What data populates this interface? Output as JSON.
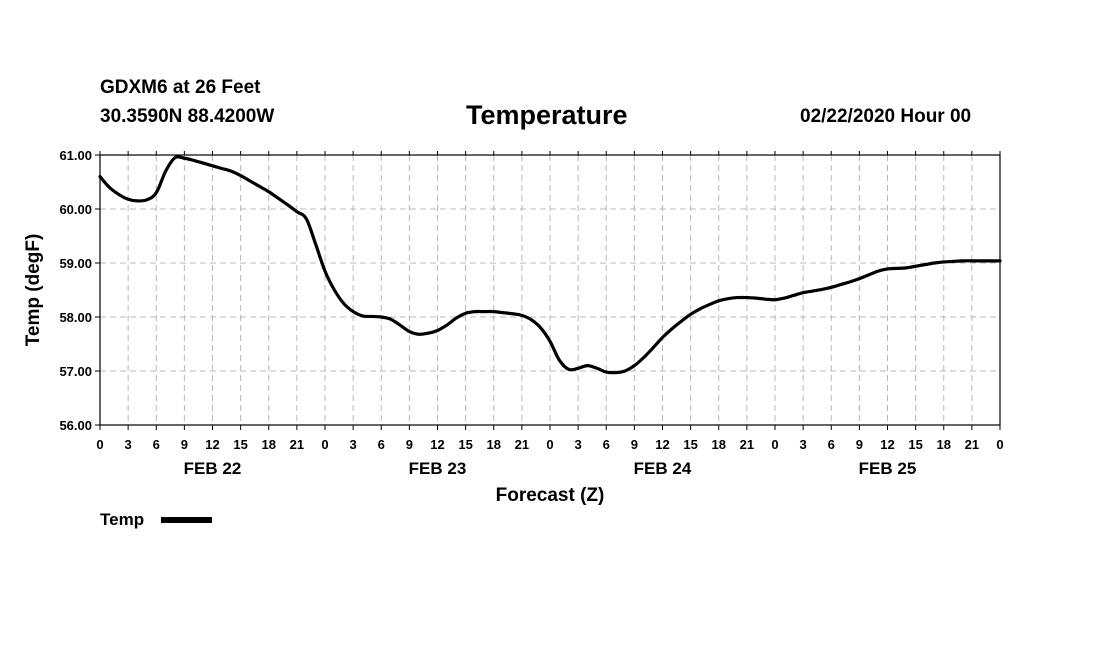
{
  "header": {
    "station": "GDXM6 at 26 Feet",
    "coordinates": "30.3590N 88.4200W",
    "title": "Temperature",
    "run_time": "02/22/2020 Hour 00"
  },
  "chart_data": {
    "type": "line",
    "title": "Temperature",
    "xlabel": "Forecast (Z)",
    "ylabel": "Temp (degF)",
    "x_unit": "forecast hour",
    "xlim": [
      0,
      96
    ],
    "ylim": [
      56,
      61
    ],
    "y_ticks": [
      "56.00",
      "57.00",
      "58.00",
      "59.00",
      "60.00",
      "61.00"
    ],
    "x_tick_labels": [
      "0",
      "3",
      "6",
      "9",
      "12",
      "15",
      "18",
      "21",
      "0",
      "3",
      "6",
      "9",
      "12",
      "15",
      "18",
      "21",
      "0",
      "3",
      "6",
      "9",
      "12",
      "15",
      "18",
      "21",
      "0",
      "3",
      "6",
      "9",
      "12",
      "15",
      "18",
      "21",
      "0"
    ],
    "day_labels": [
      {
        "label": "FEB 22",
        "hour": 12
      },
      {
        "label": "FEB 23",
        "hour": 36
      },
      {
        "label": "FEB 24",
        "hour": 60
      },
      {
        "label": "FEB 25",
        "hour": 84
      }
    ],
    "grid": true,
    "legend_position": "bottom-left",
    "series": [
      {
        "name": "Temp",
        "color": "#000000",
        "x": [
          0,
          1,
          2,
          3,
          4,
          5,
          6,
          7,
          8,
          9,
          10,
          11,
          12,
          13,
          14,
          15,
          16,
          17,
          18,
          19,
          20,
          21,
          22,
          23,
          24,
          25,
          26,
          27,
          28,
          29,
          30,
          31,
          32,
          33,
          34,
          35,
          36,
          37,
          38,
          39,
          40,
          41,
          42,
          43,
          44,
          45,
          46,
          47,
          48,
          49,
          50,
          51,
          52,
          53,
          54,
          55,
          56,
          57,
          58,
          59,
          60,
          61,
          62,
          63,
          64,
          65,
          66,
          67,
          68,
          69,
          70,
          71,
          72,
          73,
          74,
          75,
          76,
          77,
          78,
          79,
          80,
          81,
          82,
          83,
          84,
          85,
          86,
          87,
          88,
          89,
          90,
          91,
          92,
          93,
          94,
          95,
          96
        ],
        "values": [
          60.6,
          60.4,
          60.27,
          60.18,
          60.15,
          60.17,
          60.3,
          60.7,
          60.95,
          60.94,
          60.9,
          60.85,
          60.8,
          60.75,
          60.7,
          60.62,
          60.52,
          60.42,
          60.32,
          60.2,
          60.08,
          59.95,
          59.82,
          59.35,
          58.85,
          58.5,
          58.25,
          58.1,
          58.02,
          58.01,
          58.0,
          57.96,
          57.85,
          57.73,
          57.68,
          57.7,
          57.75,
          57.85,
          57.98,
          58.07,
          58.1,
          58.1,
          58.1,
          58.08,
          58.06,
          58.03,
          57.95,
          57.8,
          57.55,
          57.2,
          57.03,
          57.05,
          57.1,
          57.05,
          56.98,
          56.97,
          57.0,
          57.1,
          57.25,
          57.43,
          57.62,
          57.78,
          57.92,
          58.05,
          58.15,
          58.23,
          58.3,
          58.34,
          58.36,
          58.36,
          58.35,
          58.33,
          58.32,
          58.35,
          58.4,
          58.45,
          58.48,
          58.51,
          58.55,
          58.6,
          58.65,
          58.71,
          58.78,
          58.85,
          58.89,
          58.9,
          58.91,
          58.94,
          58.97,
          59.0,
          59.02,
          59.03,
          59.04,
          59.04,
          59.04,
          59.04,
          59.04
        ]
      }
    ]
  }
}
